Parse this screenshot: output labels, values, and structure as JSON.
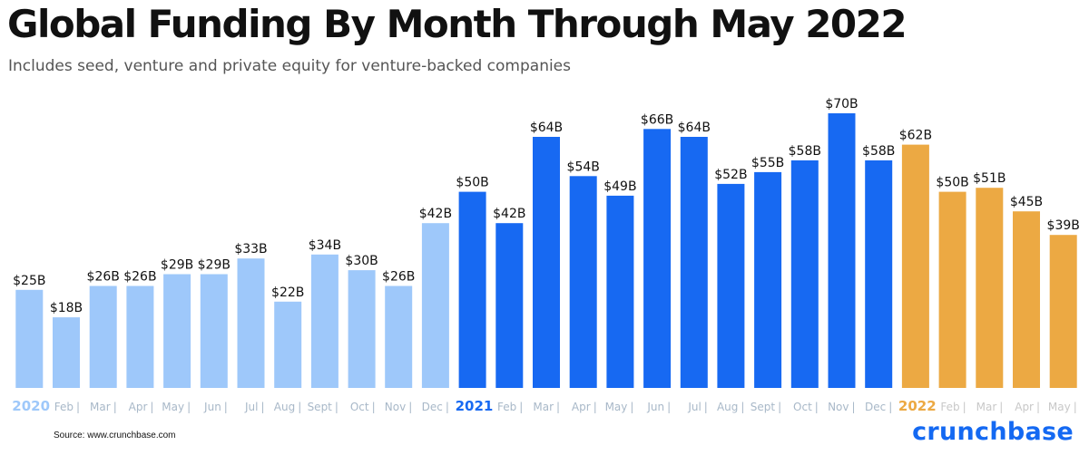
{
  "chart_data": {
    "type": "bar",
    "title": "Global Funding By Month Through May 2022",
    "subtitle": "Includes seed, venture and private equity for venture-backed companies",
    "xlabel": "",
    "ylabel": "",
    "ylim": [
      0,
      70
    ],
    "categories": [
      "2020",
      "Feb",
      "Mar",
      "Apr",
      "May",
      "Jun",
      "Jul",
      "Aug",
      "Sept",
      "Oct",
      "Nov",
      "Dec",
      "2021",
      "Feb",
      "Mar",
      "Apr",
      "May",
      "Jun",
      "Jul",
      "Aug",
      "Sept",
      "Oct",
      "Nov",
      "Dec",
      "2022",
      "Feb",
      "Mar",
      "Apr",
      "May"
    ],
    "values": [
      25,
      18,
      26,
      26,
      29,
      29,
      33,
      22,
      34,
      30,
      26,
      42,
      50,
      42,
      64,
      54,
      49,
      66,
      64,
      52,
      55,
      58,
      70,
      58,
      62,
      50,
      51,
      45,
      39
    ],
    "value_labels": [
      "$25B",
      "$18B",
      "$26B",
      "$26B",
      "$29B",
      "$29B",
      "$33B",
      "$22B",
      "$34B",
      "$30B",
      "$26B",
      "$42B",
      "$50B",
      "$42B",
      "$64B",
      "$54B",
      "$49B",
      "$66B",
      "$64B",
      "$52B",
      "$55B",
      "$58B",
      "$70B",
      "$58B",
      "$62B",
      "$50B",
      "$51B",
      "$45B",
      "$39B"
    ],
    "groups": [
      "2020",
      "2020",
      "2020",
      "2020",
      "2020",
      "2020",
      "2020",
      "2020",
      "2020",
      "2020",
      "2020",
      "2020",
      "2021",
      "2021",
      "2021",
      "2021",
      "2021",
      "2021",
      "2021",
      "2021",
      "2021",
      "2021",
      "2021",
      "2021",
      "2022",
      "2022",
      "2022",
      "2022",
      "2022"
    ],
    "colors": {
      "2020": "#9ec8fa",
      "2021": "#1769f2",
      "2022": "#eca943"
    },
    "tick_colors": {
      "2020": "#a8b8c8",
      "2021": "#a8b8c8",
      "2022": "#c8c8c8"
    },
    "year_label_colors": {
      "2020": "#9ec8fa",
      "2021": "#1769f2",
      "2022": "#eca943"
    },
    "separator": "|",
    "grid": false,
    "legend": "none"
  },
  "source": "Source: www.crunchbase.com",
  "brand": "crunchbase"
}
